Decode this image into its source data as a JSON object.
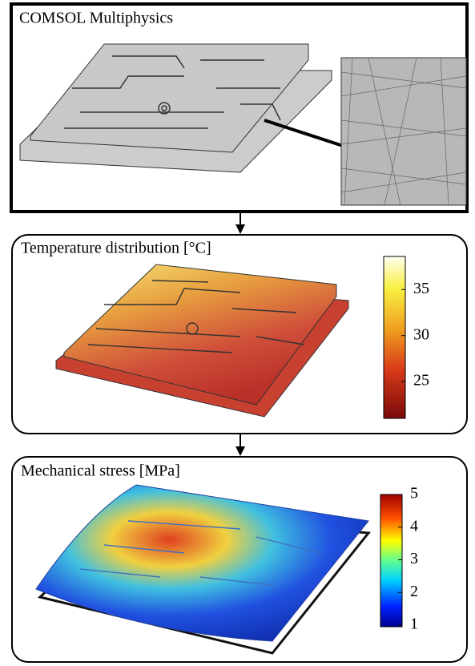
{
  "panels": [
    {
      "title": "COMSOL Multiphysics"
    },
    {
      "title": "Temperature distribution [°C]",
      "colorbar": {
        "lim": [
          21,
          38.6
        ],
        "ticks": [
          25,
          30,
          35
        ]
      }
    },
    {
      "title": "Mechanical stress [MPa]",
      "colorbar": {
        "lim": [
          0.95,
          5
        ],
        "ticks": [
          1,
          2,
          3,
          4,
          5
        ]
      }
    }
  ]
}
